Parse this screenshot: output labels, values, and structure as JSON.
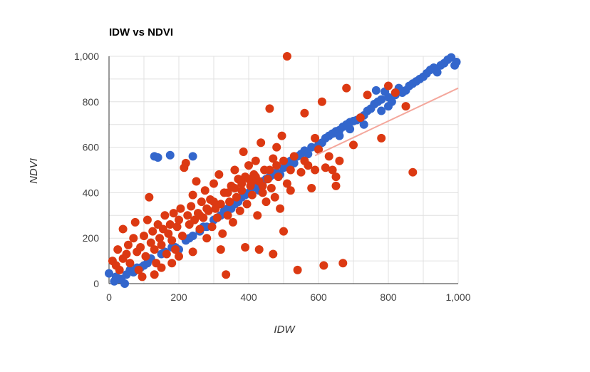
{
  "chart_data": {
    "type": "scatter",
    "title": "IDW vs NDVI",
    "xlabel": "IDW",
    "ylabel": "NDVI",
    "xlim": [
      0,
      1000
    ],
    "ylim": [
      0,
      1000
    ],
    "x_ticks": [
      "0",
      "200",
      "400",
      "600",
      "800",
      "1,000"
    ],
    "y_ticks": [
      "0",
      "200",
      "400",
      "600",
      "800",
      "1,000"
    ],
    "x_tick_values": [
      0,
      200,
      400,
      600,
      800,
      1000
    ],
    "y_tick_values": [
      0,
      200,
      400,
      600,
      800,
      1000
    ],
    "grid": true,
    "series": [
      {
        "color": "#3366cc",
        "points": [
          [
            0,
            45
          ],
          [
            15,
            10
          ],
          [
            20,
            30
          ],
          [
            35,
            20
          ],
          [
            45,
            0
          ],
          [
            50,
            40
          ],
          [
            60,
            60
          ],
          [
            80,
            70
          ],
          [
            100,
            80
          ],
          [
            110,
            90
          ],
          [
            120,
            110
          ],
          [
            130,
            560
          ],
          [
            140,
            555
          ],
          [
            175,
            565
          ],
          [
            240,
            560
          ],
          [
            150,
            130
          ],
          [
            180,
            160
          ],
          [
            200,
            150
          ],
          [
            220,
            190
          ],
          [
            240,
            210
          ],
          [
            260,
            230
          ],
          [
            280,
            250
          ],
          [
            300,
            280
          ],
          [
            320,
            300
          ],
          [
            330,
            320
          ],
          [
            340,
            330
          ],
          [
            360,
            350
          ],
          [
            370,
            360
          ],
          [
            380,
            380
          ],
          [
            390,
            390
          ],
          [
            400,
            400
          ],
          [
            410,
            420
          ],
          [
            420,
            430
          ],
          [
            440,
            450
          ],
          [
            450,
            460
          ],
          [
            460,
            470
          ],
          [
            470,
            480
          ],
          [
            480,
            490
          ],
          [
            500,
            510
          ],
          [
            510,
            520
          ],
          [
            520,
            540
          ],
          [
            540,
            560
          ],
          [
            550,
            570
          ],
          [
            560,
            585
          ],
          [
            580,
            600
          ],
          [
            600,
            610
          ],
          [
            610,
            620
          ],
          [
            620,
            640
          ],
          [
            630,
            650
          ],
          [
            640,
            660
          ],
          [
            650,
            670
          ],
          [
            660,
            675
          ],
          [
            670,
            690
          ],
          [
            680,
            700
          ],
          [
            690,
            710
          ],
          [
            700,
            715
          ],
          [
            710,
            720
          ],
          [
            720,
            730
          ],
          [
            730,
            740
          ],
          [
            740,
            760
          ],
          [
            750,
            770
          ],
          [
            760,
            790
          ],
          [
            765,
            850
          ],
          [
            770,
            800
          ],
          [
            780,
            810
          ],
          [
            790,
            845
          ],
          [
            800,
            820
          ],
          [
            810,
            800
          ],
          [
            820,
            830
          ],
          [
            830,
            860
          ],
          [
            840,
            840
          ],
          [
            850,
            850
          ],
          [
            860,
            870
          ],
          [
            870,
            880
          ],
          [
            880,
            890
          ],
          [
            890,
            900
          ],
          [
            900,
            910
          ],
          [
            910,
            925
          ],
          [
            920,
            940
          ],
          [
            930,
            950
          ],
          [
            940,
            930
          ],
          [
            950,
            960
          ],
          [
            960,
            970
          ],
          [
            970,
            985
          ],
          [
            980,
            995
          ],
          [
            990,
            960
          ],
          [
            995,
            975
          ],
          [
            780,
            760
          ],
          [
            800,
            780
          ],
          [
            730,
            700
          ],
          [
            690,
            680
          ],
          [
            660,
            650
          ],
          [
            600,
            590
          ],
          [
            570,
            570
          ],
          [
            530,
            530
          ],
          [
            490,
            480
          ],
          [
            430,
            410
          ],
          [
            350,
            330
          ],
          [
            310,
            290
          ],
          [
            270,
            250
          ],
          [
            230,
            200
          ],
          [
            190,
            160
          ],
          [
            160,
            140
          ],
          [
            90,
            70
          ],
          [
            70,
            50
          ],
          [
            30,
            20
          ]
        ]
      },
      {
        "color": "#dc3912",
        "points": [
          [
            510,
            1000
          ],
          [
            10,
            100
          ],
          [
            20,
            80
          ],
          [
            25,
            150
          ],
          [
            30,
            60
          ],
          [
            40,
            110
          ],
          [
            40,
            240
          ],
          [
            50,
            130
          ],
          [
            55,
            170
          ],
          [
            60,
            90
          ],
          [
            70,
            200
          ],
          [
            75,
            270
          ],
          [
            80,
            140
          ],
          [
            85,
            60
          ],
          [
            90,
            160
          ],
          [
            95,
            30
          ],
          [
            100,
            210
          ],
          [
            105,
            120
          ],
          [
            110,
            280
          ],
          [
            115,
            380
          ],
          [
            120,
            180
          ],
          [
            125,
            230
          ],
          [
            130,
            150
          ],
          [
            135,
            90
          ],
          [
            140,
            260
          ],
          [
            145,
            200
          ],
          [
            150,
            170
          ],
          [
            155,
            240
          ],
          [
            160,
            300
          ],
          [
            165,
            130
          ],
          [
            170,
            220
          ],
          [
            175,
            260
          ],
          [
            180,
            190
          ],
          [
            185,
            310
          ],
          [
            190,
            150
          ],
          [
            195,
            250
          ],
          [
            200,
            280
          ],
          [
            205,
            330
          ],
          [
            210,
            210
          ],
          [
            215,
            510
          ],
          [
            220,
            530
          ],
          [
            225,
            300
          ],
          [
            230,
            260
          ],
          [
            235,
            340
          ],
          [
            240,
            390
          ],
          [
            245,
            280
          ],
          [
            250,
            450
          ],
          [
            255,
            310
          ],
          [
            260,
            240
          ],
          [
            265,
            360
          ],
          [
            270,
            290
          ],
          [
            275,
            410
          ],
          [
            280,
            200
          ],
          [
            285,
            320
          ],
          [
            290,
            370
          ],
          [
            295,
            250
          ],
          [
            300,
            440
          ],
          [
            305,
            330
          ],
          [
            310,
            290
          ],
          [
            315,
            480
          ],
          [
            320,
            350
          ],
          [
            325,
            220
          ],
          [
            330,
            400
          ],
          [
            335,
            40
          ],
          [
            340,
            300
          ],
          [
            345,
            360
          ],
          [
            350,
            430
          ],
          [
            355,
            270
          ],
          [
            360,
            500
          ],
          [
            365,
            380
          ],
          [
            370,
            460
          ],
          [
            375,
            320
          ],
          [
            380,
            410
          ],
          [
            385,
            580
          ],
          [
            390,
            470
          ],
          [
            395,
            350
          ],
          [
            400,
            520
          ],
          [
            405,
            430
          ],
          [
            410,
            390
          ],
          [
            415,
            480
          ],
          [
            420,
            540
          ],
          [
            425,
            300
          ],
          [
            430,
            450
          ],
          [
            435,
            620
          ],
          [
            440,
            400
          ],
          [
            445,
            500
          ],
          [
            450,
            360
          ],
          [
            455,
            460
          ],
          [
            460,
            770
          ],
          [
            465,
            420
          ],
          [
            470,
            550
          ],
          [
            475,
            380
          ],
          [
            480,
            600
          ],
          [
            485,
            470
          ],
          [
            490,
            330
          ],
          [
            495,
            650
          ],
          [
            500,
            230
          ],
          [
            510,
            440
          ],
          [
            520,
            410
          ],
          [
            530,
            560
          ],
          [
            540,
            60
          ],
          [
            550,
            490
          ],
          [
            560,
            750
          ],
          [
            570,
            520
          ],
          [
            580,
            420
          ],
          [
            590,
            640
          ],
          [
            600,
            590
          ],
          [
            610,
            800
          ],
          [
            615,
            80
          ],
          [
            620,
            510
          ],
          [
            630,
            560
          ],
          [
            640,
            500
          ],
          [
            650,
            430
          ],
          [
            660,
            540
          ],
          [
            670,
            90
          ],
          [
            680,
            860
          ],
          [
            700,
            610
          ],
          [
            720,
            730
          ],
          [
            740,
            830
          ],
          [
            780,
            640
          ],
          [
            800,
            870
          ],
          [
            820,
            840
          ],
          [
            850,
            780
          ],
          [
            870,
            490
          ],
          [
            430,
            150
          ],
          [
            470,
            130
          ],
          [
            390,
            160
          ],
          [
            320,
            150
          ],
          [
            240,
            140
          ],
          [
            200,
            120
          ],
          [
            180,
            90
          ],
          [
            150,
            70
          ],
          [
            130,
            40
          ],
          [
            380,
            440
          ],
          [
            420,
            470
          ],
          [
            440,
            430
          ],
          [
            410,
            450
          ],
          [
            400,
            460
          ],
          [
            360,
            420
          ],
          [
            300,
            360
          ],
          [
            280,
            330
          ],
          [
            260,
            300
          ],
          [
            340,
            400
          ],
          [
            460,
            500
          ],
          [
            480,
            520
          ],
          [
            500,
            540
          ],
          [
            520,
            500
          ],
          [
            560,
            540
          ],
          [
            590,
            500
          ],
          [
            650,
            470
          ]
        ]
      },
      {
        "type": "line",
        "color": "#f4a79c",
        "points": [
          [
            590,
            563
          ],
          [
            1000,
            860
          ]
        ]
      }
    ]
  }
}
